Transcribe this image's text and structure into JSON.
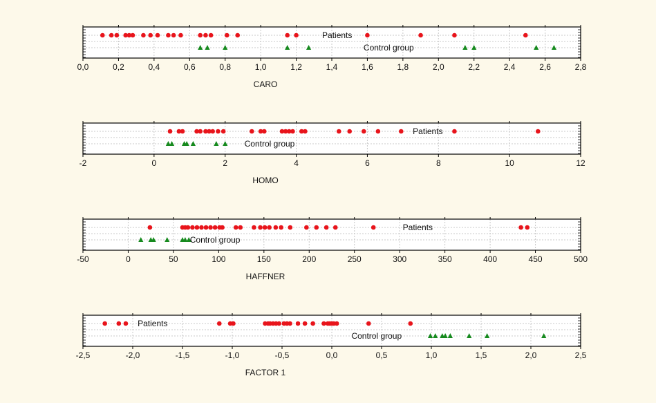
{
  "chart_data": [
    {
      "type": "scatter",
      "xlabel": "CARO",
      "xlim": [
        0.0,
        2.8
      ],
      "xticks": [
        0.0,
        0.2,
        0.4,
        0.6,
        0.8,
        1.0,
        1.2,
        1.4,
        1.6,
        1.8,
        2.0,
        2.2,
        2.4,
        2.6,
        2.8
      ],
      "tick_decimals": 1,
      "decimal_comma": true,
      "series": [
        {
          "name": "Patients",
          "color": "#e8141b",
          "marker": "circle",
          "values": [
            0.11,
            0.16,
            0.19,
            0.24,
            0.26,
            0.28,
            0.34,
            0.38,
            0.42,
            0.48,
            0.51,
            0.55,
            0.66,
            0.69,
            0.72,
            0.81,
            0.87,
            1.15,
            1.2,
            1.6,
            1.9,
            2.09,
            2.49
          ]
        },
        {
          "name": "Control group",
          "color": "#168a1e",
          "marker": "triangle",
          "values": [
            0.66,
            0.7,
            0.8,
            1.15,
            1.27,
            2.15,
            2.2,
            2.55,
            2.65
          ]
        }
      ],
      "labels": [
        {
          "text": "Patients",
          "series": 0,
          "x": 1.43
        },
        {
          "text": "Control group",
          "series": 1,
          "x": 1.72
        }
      ]
    },
    {
      "type": "scatter",
      "xlabel": "HOMO",
      "xlim": [
        -2,
        12
      ],
      "xticks": [
        -2,
        0,
        2,
        4,
        6,
        8,
        10,
        12
      ],
      "tick_decimals": 0,
      "decimal_comma": true,
      "series": [
        {
          "name": "Patients",
          "color": "#e8141b",
          "marker": "circle",
          "values": [
            0.45,
            0.7,
            0.8,
            1.2,
            1.3,
            1.45,
            1.55,
            1.65,
            1.8,
            1.95,
            2.75,
            3.0,
            3.1,
            3.6,
            3.7,
            3.8,
            3.9,
            4.15,
            4.25,
            5.2,
            5.5,
            5.9,
            6.3,
            6.95,
            8.45,
            10.8
          ]
        },
        {
          "name": "Control group",
          "color": "#168a1e",
          "marker": "triangle",
          "values": [
            0.4,
            0.5,
            0.85,
            0.92,
            1.1,
            1.75,
            2.0
          ]
        }
      ],
      "labels": [
        {
          "text": "Patients",
          "series": 0,
          "x": 7.7
        },
        {
          "text": "Control group",
          "series": 1,
          "x": 3.25
        }
      ]
    },
    {
      "type": "scatter",
      "xlabel": "HAFFNER",
      "xlim": [
        -50,
        500
      ],
      "xticks": [
        -50,
        0,
        50,
        100,
        150,
        200,
        250,
        300,
        350,
        400,
        450,
        500
      ],
      "tick_decimals": 0,
      "decimal_comma": true,
      "series": [
        {
          "name": "Patients",
          "color": "#e8141b",
          "marker": "circle",
          "values": [
            24,
            60,
            63,
            66,
            71,
            76,
            81,
            86,
            91,
            96,
            101,
            104,
            119,
            124,
            139,
            146,
            151,
            156,
            163,
            169,
            179,
            197,
            208,
            219,
            229,
            271,
            434,
            441
          ]
        },
        {
          "name": "Control group",
          "color": "#168a1e",
          "marker": "triangle",
          "values": [
            14,
            25,
            28,
            43,
            60,
            63,
            67
          ]
        }
      ],
      "labels": [
        {
          "text": "Patients",
          "series": 0,
          "x": 320
        },
        {
          "text": "Control group",
          "series": 1,
          "x": 96
        }
      ]
    },
    {
      "type": "scatter",
      "xlabel": "FACTOR 1",
      "xlim": [
        -2.5,
        2.5
      ],
      "xticks": [
        -2.5,
        -2.0,
        -1.5,
        -1.0,
        -0.5,
        0.0,
        0.5,
        1.0,
        1.5,
        2.0,
        2.5
      ],
      "tick_decimals": 1,
      "decimal_comma": true,
      "series": [
        {
          "name": "Patients",
          "color": "#e8141b",
          "marker": "circle",
          "values": [
            -2.28,
            -2.14,
            -2.07,
            -1.13,
            -1.02,
            -0.99,
            -0.67,
            -0.64,
            -0.62,
            -0.59,
            -0.56,
            -0.53,
            -0.48,
            -0.45,
            -0.42,
            -0.34,
            -0.27,
            -0.19,
            -0.08,
            -0.04,
            -0.02,
            0.0,
            0.02,
            0.05,
            0.37,
            0.79
          ]
        },
        {
          "name": "Control group",
          "color": "#168a1e",
          "marker": "triangle",
          "values": [
            0.99,
            1.04,
            1.11,
            1.14,
            1.19,
            1.38,
            1.56,
            2.13
          ]
        }
      ],
      "labels": [
        {
          "text": "Patients",
          "series": 0,
          "x": -1.8
        },
        {
          "text": "Control group",
          "series": 1,
          "x": 0.45
        }
      ]
    }
  ]
}
